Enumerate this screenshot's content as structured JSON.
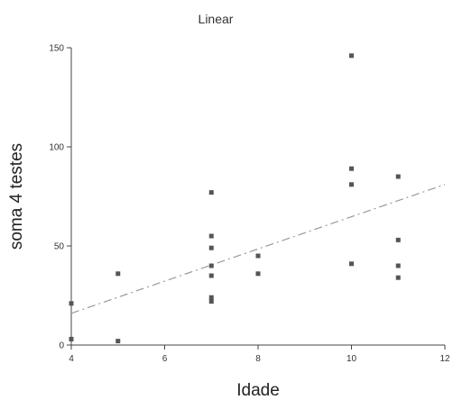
{
  "chart_data": {
    "type": "scatter",
    "title": "Linear",
    "xlabel": "Idade",
    "ylabel": "soma 4 testes",
    "xlim": [
      4,
      12
    ],
    "ylim": [
      0,
      150
    ],
    "x_ticks": [
      4,
      6,
      8,
      10,
      12
    ],
    "y_ticks": [
      0,
      50,
      100,
      150
    ],
    "grid": false,
    "legend": "none",
    "colors": {
      "points": "#555555",
      "fit_line": "#9a9a9a",
      "axis": "#444444"
    },
    "points": [
      {
        "x": 4,
        "y": 21
      },
      {
        "x": 4,
        "y": 3
      },
      {
        "x": 5,
        "y": 36
      },
      {
        "x": 5,
        "y": 2
      },
      {
        "x": 7,
        "y": 77
      },
      {
        "x": 7,
        "y": 55
      },
      {
        "x": 7,
        "y": 49
      },
      {
        "x": 7,
        "y": 40
      },
      {
        "x": 7,
        "y": 35
      },
      {
        "x": 7,
        "y": 24
      },
      {
        "x": 7,
        "y": 22
      },
      {
        "x": 8,
        "y": 45
      },
      {
        "x": 8,
        "y": 36
      },
      {
        "x": 10,
        "y": 146
      },
      {
        "x": 10,
        "y": 89
      },
      {
        "x": 10,
        "y": 81
      },
      {
        "x": 10,
        "y": 41
      },
      {
        "x": 11,
        "y": 85
      },
      {
        "x": 11,
        "y": 53
      },
      {
        "x": 11,
        "y": 40
      },
      {
        "x": 11,
        "y": 34
      }
    ],
    "fit_line": {
      "style": "dash-dot",
      "x": [
        4,
        12
      ],
      "y": [
        16,
        81
      ]
    }
  }
}
